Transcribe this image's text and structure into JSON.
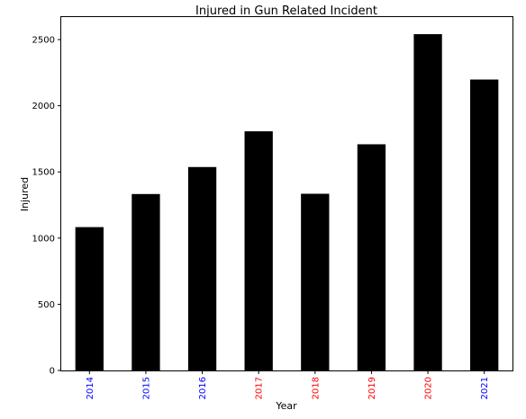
{
  "chart_data": {
    "type": "bar",
    "title": "Injured in Gun Related Incident",
    "xlabel": "Year",
    "ylabel": "Injured",
    "categories": [
      "2014",
      "2015",
      "2016",
      "2017",
      "2018",
      "2019",
      "2020",
      "2021"
    ],
    "values": [
      1083,
      1333,
      1537,
      1807,
      1335,
      1709,
      2541,
      2198
    ],
    "category_label_colors": [
      "#0000ff",
      "#0000ff",
      "#0000ff",
      "#ff0000",
      "#ff0000",
      "#ff0000",
      "#ff0000",
      "#0000ff"
    ],
    "bar_color": "#000000",
    "ylim": [
      0,
      2670
    ],
    "yticks": [
      0,
      500,
      1000,
      1500,
      2000,
      2500
    ],
    "grid": false,
    "legend": false
  }
}
